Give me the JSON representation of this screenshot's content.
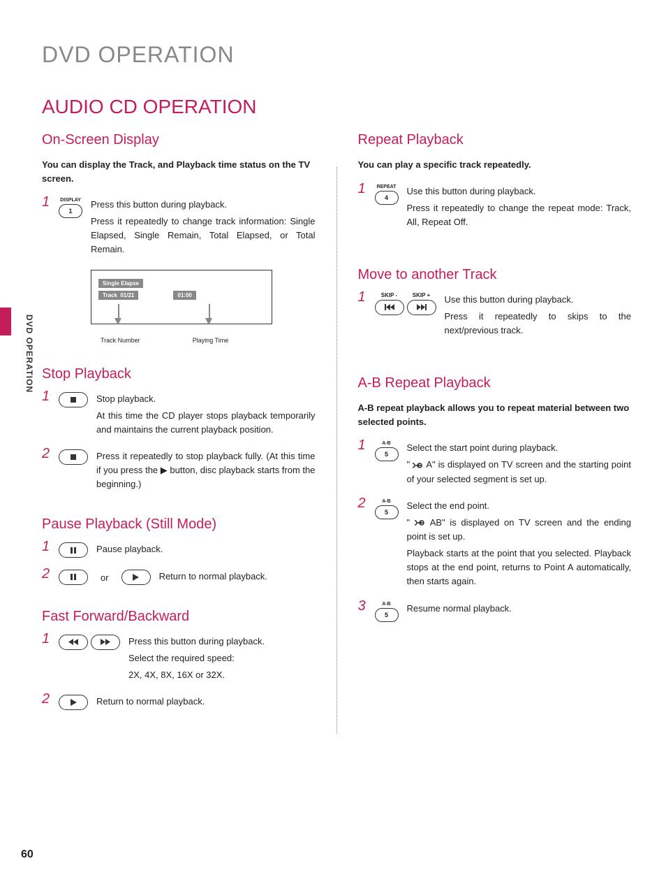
{
  "page": {
    "title": "DVD OPERATION",
    "section_title": "AUDIO CD OPERATION",
    "page_number": "60",
    "side_label": "DVD OPERATION"
  },
  "colors": {
    "accent": "#c41e5a",
    "title_grey": "#888888",
    "text": "#222222",
    "tag_bg": "#888888"
  },
  "left": {
    "onscreen": {
      "title": "On-Screen Display",
      "intro": "You can display the Track, and Playback time status on the TV screen.",
      "steps": [
        {
          "num": "1",
          "button": {
            "top_label": "DISPLAY",
            "inner": "1"
          },
          "lines": [
            "Press this button during playback.",
            "Press it repeatedly to change track information: Single Elapsed, Single Remain, Total Elapsed, or Total Remain."
          ]
        }
      ],
      "diagram": {
        "tag1": "Single Elapse",
        "tag2_left": "Track",
        "tag2_time": "01/21",
        "tag3": "01:00",
        "label_left": "Track Number",
        "label_right": "Playing Time"
      }
    },
    "stop": {
      "title": "Stop Playback",
      "steps": [
        {
          "num": "1",
          "button_icon": "stop",
          "lines": [
            "Stop playback.",
            "At this time the  CD player stops playback temporarily and maintains the current playback position."
          ]
        },
        {
          "num": "2",
          "button_icon": "stop",
          "lines": [
            "Press it repeatedly to stop playback fully. (At this time if you press the ▶ button, disc playback starts from the beginning.)"
          ]
        }
      ]
    },
    "pause": {
      "title": "Pause Playback (Still Mode)",
      "steps": [
        {
          "num": "1",
          "button_icon": "pause",
          "lines": [
            "Pause playback."
          ]
        },
        {
          "num": "2",
          "button_icon": "pause",
          "or": "or",
          "button_icon2": "play",
          "lines": [
            "Return to normal playback."
          ]
        }
      ]
    },
    "ff": {
      "title": "Fast Forward/Backward",
      "steps": [
        {
          "num": "1",
          "button_icon_pair": [
            "rewind",
            "fastforward"
          ],
          "lines": [
            "Press this button during playback.",
            "Select the required speed:",
            "2X, 4X, 8X, 16X or 32X."
          ]
        },
        {
          "num": "2",
          "button_icon": "play",
          "lines": [
            "Return to normal playback."
          ]
        }
      ]
    }
  },
  "right": {
    "repeat": {
      "title": "Repeat Playback",
      "intro": "You can play a specific track repeatedly.",
      "steps": [
        {
          "num": "1",
          "button": {
            "top_label": "REPEAT",
            "inner": "4"
          },
          "lines": [
            "Use this button during playback.",
            "Press it repeatedly to change the repeat mode: Track, All, Repeat Off."
          ]
        }
      ]
    },
    "move": {
      "title": "Move to another Track",
      "steps": [
        {
          "num": "1",
          "button_pair_labeled": [
            {
              "top": "SKIP -",
              "icon": "skip-prev"
            },
            {
              "top": "SKIP +",
              "icon": "skip-next"
            }
          ],
          "lines": [
            "Use this button during playback.",
            "Press it repeatedly to skips to the next/previous track."
          ]
        }
      ]
    },
    "ab": {
      "title": "A-B Repeat Playback",
      "intro": "A-B repeat playback allows you to repeat material between two selected points.",
      "steps": [
        {
          "num": "1",
          "button": {
            "top_label": "A-B",
            "inner": "5"
          },
          "lines_html": "Select the start point during playback.|\" LOOP A\" is displayed on TV screen and the starting point of your selected segment is set up."
        },
        {
          "num": "2",
          "button": {
            "top_label": "A-B",
            "inner": "5"
          },
          "lines_html": "Select the end point.|\" LOOP AB\" is displayed on TV screen and the ending point is set up.|Playback starts at the point that you selected. Playback stops at the end point, returns to Point A automatically, then starts again."
        },
        {
          "num": "3",
          "button": {
            "top_label": "A-B",
            "inner": "5"
          },
          "lines_html": "Resume normal playback."
        }
      ]
    }
  }
}
